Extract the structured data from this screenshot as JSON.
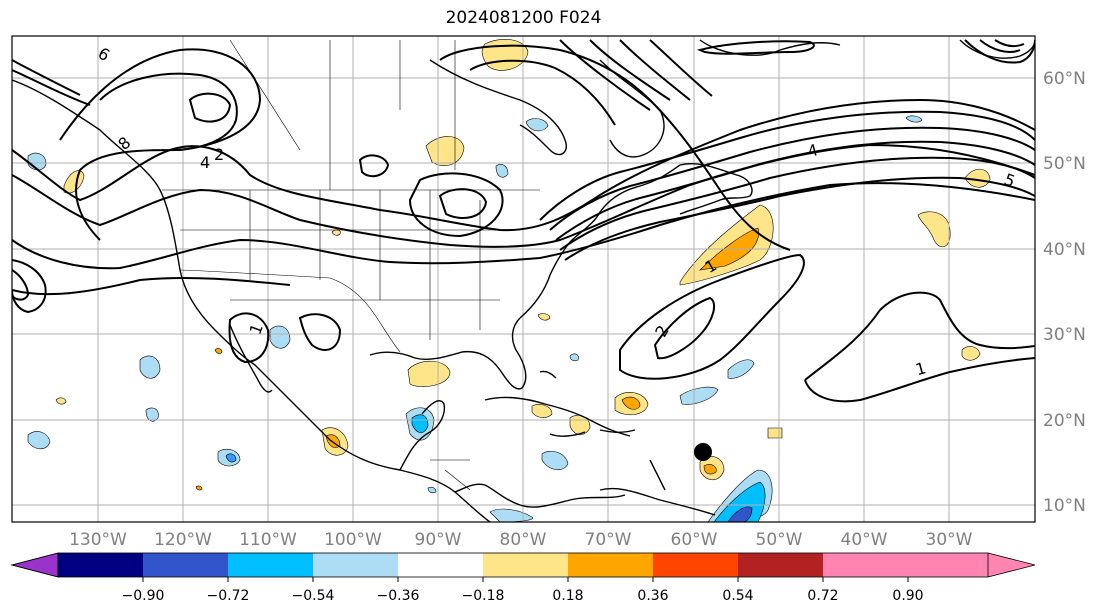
{
  "title": "2024081200 F024",
  "map": {
    "lat_labels": [
      "60°N",
      "50°N",
      "40°N",
      "30°N",
      "20°N",
      "10°N"
    ],
    "lon_labels": [
      "130°W",
      "120°W",
      "110°W",
      "100°W",
      "90°W",
      "80°W",
      "70°W",
      "60°W",
      "50°W",
      "40°W",
      "30°W"
    ],
    "contour_labels": [
      "1",
      "2",
      "1",
      "1",
      "2",
      "4",
      "5",
      "4",
      "6",
      "8"
    ]
  },
  "colorbar": {
    "ticks": [
      "−0.90",
      "−0.72",
      "−0.54",
      "−0.36",
      "−0.18",
      "0.18",
      "0.36",
      "0.54",
      "0.72",
      "0.90"
    ],
    "colors": [
      "#9933cc",
      "#000080",
      "#3355cc",
      "#00bfff",
      "#addcf5",
      "#ffffff",
      "#ffe58a",
      "#ffa500",
      "#ff4500",
      "#b22222",
      "#ff85b0"
    ]
  },
  "colors": {
    "frame": "#000000",
    "grid": "#b0b0b0",
    "lat_lon_label": "#808080"
  }
}
